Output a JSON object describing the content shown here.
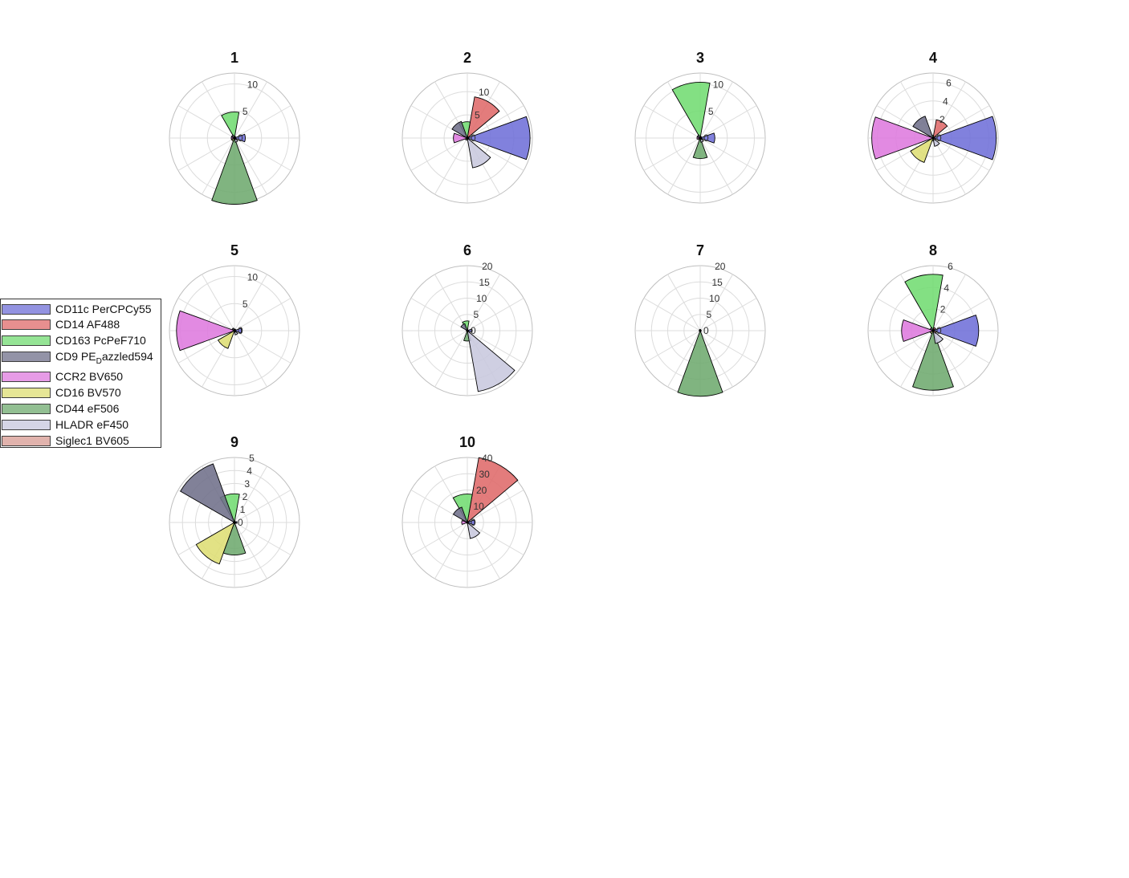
{
  "chart_data": {
    "type": "polar-bar",
    "series_order": [
      "CD11c PerCPCy55",
      "CD14 AF488",
      "CD163 PcPeF710",
      "CD9 PE_Dazzled594",
      "CCR2 BV650",
      "CD16 BV570",
      "CD44 eF506",
      "HLADR eF450",
      "Siglec1 BV605"
    ],
    "colors": [
      "#7070d8",
      "#df6a6a",
      "#72dc72",
      "#70708a",
      "#de7ade",
      "#dede74",
      "#6eaa6e",
      "#c8c8de",
      "#d89a92"
    ],
    "legend": {
      "position": "left",
      "entries": [
        {
          "label": "CD11c PerCPCy55"
        },
        {
          "label": "CD14 AF488"
        },
        {
          "label": "CD163 PcPeF710"
        },
        {
          "label": "CD9 PE",
          "sub": "D",
          "suffix": "azzled594"
        },
        {
          "label": "CCR2 BV650"
        },
        {
          "label": "CD16 BV570"
        },
        {
          "label": "CD44 eF506"
        },
        {
          "label": "HLADR eF450"
        },
        {
          "label": "Siglec1 BV605"
        }
      ]
    },
    "charts": [
      {
        "title": "1",
        "rmax": 12,
        "ticks": [
          "0",
          "5",
          "10"
        ],
        "tick_values": [
          0,
          5,
          10
        ],
        "values": [
          2,
          0.3,
          4.8,
          0.6,
          0.6,
          0.6,
          13.7,
          0.8,
          0.3
        ]
      },
      {
        "title": "2",
        "rmax": 14,
        "ticks": [
          "0",
          "5",
          "10"
        ],
        "tick_values": [
          0,
          5,
          10
        ],
        "values": [
          13.5,
          9,
          3.5,
          3.8,
          3,
          0.5,
          0.3,
          6.5,
          0.3
        ]
      },
      {
        "title": "3",
        "rmax": 12,
        "ticks": [
          "0",
          "5",
          "10"
        ],
        "tick_values": [
          0,
          5,
          10
        ],
        "values": [
          2.7,
          0.3,
          10.3,
          0.6,
          0.6,
          0.4,
          3.8,
          0.8,
          0.3
        ]
      },
      {
        "title": "4",
        "rmax": 7,
        "ticks": [
          "0",
          "2",
          "4",
          "6"
        ],
        "tick_values": [
          0,
          2,
          4,
          6
        ],
        "values": [
          6.8,
          2,
          0.3,
          2.5,
          6.6,
          2.8,
          0.3,
          0.9,
          0.3
        ]
      },
      {
        "title": "5",
        "rmax": 12,
        "ticks": [
          "0",
          "5",
          "10"
        ],
        "tick_values": [
          0,
          5,
          10
        ],
        "values": [
          1.3,
          0.3,
          0.3,
          0.5,
          10.7,
          3.5,
          0.3,
          0.8,
          0.3
        ]
      },
      {
        "title": "6",
        "rmax": 20,
        "ticks": [
          "0",
          "5",
          "10",
          "15",
          "20"
        ],
        "tick_values": [
          0,
          5,
          10,
          15,
          20
        ],
        "values": [
          1.5,
          0.3,
          3,
          2.3,
          0.3,
          0.3,
          3.2,
          19,
          0.3
        ]
      },
      {
        "title": "7",
        "rmax": 20,
        "ticks": [
          "0",
          "5",
          "10",
          "15",
          "20"
        ],
        "tick_values": [
          0,
          5,
          10,
          15,
          20
        ],
        "values": [
          0.3,
          0.3,
          0.4,
          0.3,
          0.3,
          0.3,
          20.2,
          0.3,
          0.3
        ]
      },
      {
        "title": "8",
        "rmax": 6,
        "ticks": [
          "0",
          "2",
          "4",
          "6"
        ],
        "tick_values": [
          0,
          2,
          4,
          6
        ],
        "values": [
          4.2,
          0.3,
          5.2,
          0.3,
          2.9,
          0.3,
          5.5,
          1.2,
          0.3
        ]
      },
      {
        "title": "9",
        "rmax": 5,
        "ticks": [
          "0",
          "1",
          "2",
          "3",
          "4",
          "5"
        ],
        "tick_values": [
          0,
          1,
          2,
          3,
          4,
          5
        ],
        "values": [
          0.2,
          0.1,
          2.2,
          4.8,
          0.1,
          3.4,
          2.5,
          0.1,
          0.1
        ]
      },
      {
        "title": "10",
        "rmax": 40,
        "ticks": [
          "0",
          "10",
          "20",
          "30",
          "40"
        ],
        "tick_values": [
          0,
          10,
          20,
          30,
          40
        ],
        "values": [
          4.5,
          40.5,
          17.5,
          10,
          3.5,
          0.5,
          0.5,
          10,
          0.3
        ]
      }
    ]
  }
}
